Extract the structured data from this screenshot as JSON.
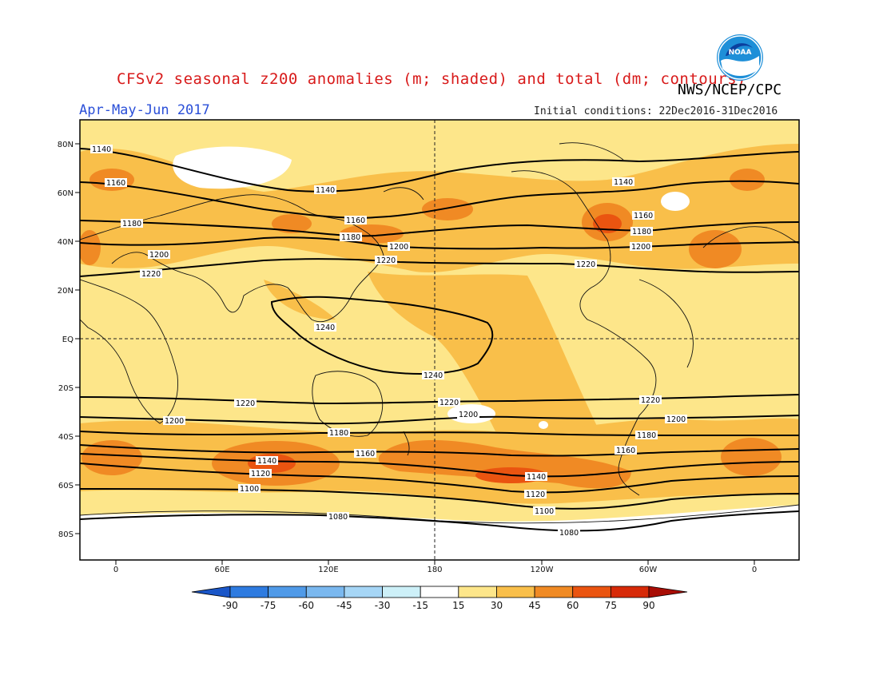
{
  "header": {
    "title": "CFSv2 seasonal z200 anomalies (m; shaded) and total (dm; contours)",
    "org": "NWS/NCEP/CPC",
    "season": "Apr-May-Jun 2017",
    "initial_conditions": "Initial conditions: 22Dec2016-31Dec2016",
    "logo_text": "NOAA"
  },
  "axes": {
    "lat_labels": [
      "80N",
      "60N",
      "40N",
      "20N",
      "EQ",
      "20S",
      "40S",
      "60S",
      "80S"
    ],
    "lon_labels": [
      "0",
      "60E",
      "120E",
      "180",
      "120W",
      "60W",
      "0"
    ]
  },
  "contour_labels": {
    "c1140a": "1140",
    "c1140b": "1140",
    "c1140c": "1140",
    "c1160a": "1160",
    "c1160b": "1160",
    "c1160c": "1160",
    "c1180a": "1180",
    "c1180b": "1180",
    "c1180c": "1180",
    "c1200a": "1200",
    "c1200b": "1200",
    "c1200c": "1200",
    "c1220a": "1220",
    "c1220b": "1220",
    "c1220c": "1220",
    "c1240a": "1240",
    "c1240b": "1240",
    "s1220a": "1220",
    "s1220b": "1220",
    "s1220c": "1220",
    "s1200a": "1200",
    "s1200b": "1200",
    "s1200c": "1200",
    "s1180a": "1180",
    "s1180b": "1180",
    "s1160a": "1160",
    "s1160b": "1160",
    "s1140a": "1140",
    "s1140b": "1140",
    "s1120a": "1120",
    "s1120b": "1120",
    "s1100a": "1100",
    "s1100b": "1100",
    "s1080a": "1080",
    "s1080b": "1080"
  },
  "colorbar": {
    "ticks": [
      "-90",
      "-75",
      "-60",
      "-45",
      "-30",
      "-15",
      "15",
      "30",
      "45",
      "60",
      "75",
      "90"
    ],
    "colors": [
      "#1a56c8",
      "#2e7be0",
      "#4f9ae8",
      "#7ab8ef",
      "#a6d6f6",
      "#cdf0f8",
      "#ffffff",
      "#fde68a",
      "#f9bf4a",
      "#f08a24",
      "#ea5410",
      "#d72a08",
      "#a80d05"
    ]
  },
  "colors": {
    "title": "#d81a1a",
    "season": "#2a4fd8",
    "base_fill": "#fde68a"
  }
}
